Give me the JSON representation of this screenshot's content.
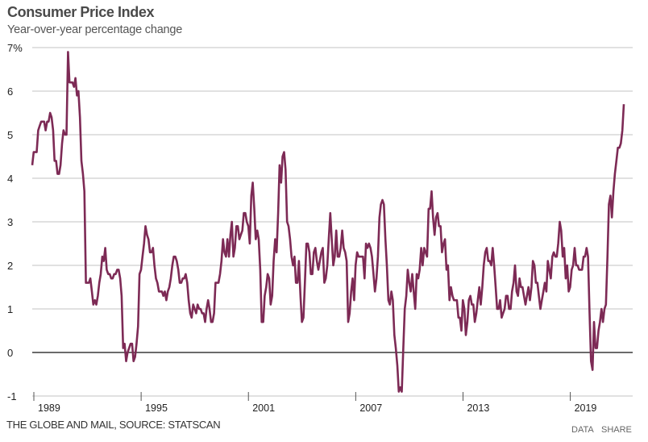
{
  "chart_data": {
    "type": "line",
    "title": "Consumer Price Index",
    "subtitle": "Year-over-year percentage change",
    "xlabel": "",
    "ylabel": "",
    "frequency": "monthly",
    "x_range": [
      "1989-01",
      "2022-02"
    ],
    "ylim": [
      -1,
      7
    ],
    "y_ticks": [
      -1,
      0,
      1,
      2,
      3,
      4,
      5,
      6,
      7
    ],
    "y_tick_labels": [
      "-1",
      "0",
      "1",
      "2",
      "3",
      "4",
      "5",
      "6",
      "7%"
    ],
    "x_ticks": [
      1989,
      1995,
      2001,
      2007,
      2013,
      2019
    ],
    "x_tick_labels": [
      "1989",
      "1995",
      "2001",
      "2007",
      "2013",
      "2019"
    ],
    "grid": true,
    "zero_line": true,
    "line_color": "#7d2a55",
    "series": [
      {
        "values_by_year": {
          "1989": [
            4.3,
            4.6,
            4.6,
            4.6,
            5.1,
            5.2,
            5.3,
            5.3,
            5.3,
            5.1,
            5.3,
            5.3
          ],
          "1990": [
            5.5,
            5.4,
            5.1,
            4.4,
            4.4,
            4.1,
            4.1,
            4.3,
            4.8,
            5.1,
            5.0,
            5.0
          ],
          "1991": [
            6.9,
            6.2,
            6.2,
            6.2,
            6.1,
            6.3,
            5.9,
            6.0,
            5.4,
            4.4,
            4.1,
            3.7
          ],
          "1992": [
            1.6,
            1.6,
            1.6,
            1.7,
            1.4,
            1.1,
            1.2,
            1.1,
            1.3,
            1.6,
            1.8,
            2.2
          ],
          "1993": [
            2.1,
            2.4,
            1.9,
            1.8,
            1.8,
            1.7,
            1.7,
            1.8,
            1.8,
            1.9,
            1.9,
            1.7
          ],
          "1994": [
            1.3,
            0.1,
            0.2,
            -0.2,
            0.0,
            0.1,
            0.2,
            0.2,
            -0.2,
            -0.1,
            0.2,
            0.6
          ],
          "1995": [
            1.8,
            1.9,
            2.2,
            2.5,
            2.9,
            2.7,
            2.6,
            2.3,
            2.3,
            2.4,
            2.0,
            1.7
          ],
          "1996": [
            1.6,
            1.4,
            1.4,
            1.4,
            1.3,
            1.4,
            1.2,
            1.4,
            1.5,
            1.7,
            2.0,
            2.2
          ],
          "1997": [
            2.2,
            2.1,
            1.9,
            1.6,
            1.6,
            1.7,
            1.7,
            1.8,
            1.6,
            1.2,
            0.9,
            0.8
          ],
          "1998": [
            1.1,
            1.0,
            0.9,
            1.1,
            1.0,
            1.0,
            0.9,
            0.9,
            0.7,
            1.0,
            1.2,
            1.0
          ],
          "1999": [
            0.7,
            0.7,
            0.9,
            1.6,
            1.6,
            1.6,
            1.8,
            2.1,
            2.6,
            2.3,
            2.2,
            2.6
          ],
          "2000": [
            2.2,
            2.7,
            3.0,
            2.2,
            2.4,
            2.9,
            2.9,
            2.6,
            2.7,
            2.8,
            3.2,
            3.2
          ],
          "2001": [
            3.0,
            2.9,
            2.5,
            3.6,
            3.9,
            3.3,
            2.6,
            2.8,
            2.6,
            1.9,
            0.7,
            0.7
          ],
          "2002": [
            1.3,
            1.5,
            1.8,
            1.7,
            1.1,
            1.3,
            2.1,
            2.6,
            2.3,
            3.2,
            4.3,
            3.9
          ],
          "2003": [
            4.5,
            4.6,
            4.2,
            3.0,
            2.9,
            2.6,
            2.2,
            2.0,
            2.2,
            1.6,
            1.6,
            2.1
          ],
          "2004": [
            1.3,
            0.7,
            0.8,
            1.6,
            2.5,
            2.5,
            2.3,
            1.8,
            1.8,
            2.3,
            2.4,
            2.1
          ],
          "2005": [
            1.9,
            2.1,
            2.3,
            2.4,
            1.6,
            1.7,
            2.0,
            2.6,
            3.2,
            2.6,
            2.0,
            2.2
          ],
          "2006": [
            2.8,
            2.2,
            2.2,
            2.4,
            2.8,
            2.4,
            2.3,
            2.1,
            0.7,
            0.9,
            1.4,
            1.7
          ],
          "2007": [
            1.2,
            2.0,
            2.3,
            2.2,
            2.2,
            2.2,
            2.2,
            1.7,
            2.5,
            2.4,
            2.5,
            2.4
          ],
          "2008": [
            2.2,
            1.8,
            1.4,
            1.7,
            2.2,
            3.1,
            3.4,
            3.5,
            3.4,
            2.6,
            2.0,
            1.2
          ],
          "2009": [
            1.1,
            1.4,
            1.2,
            0.4,
            0.1,
            -0.3,
            -0.9,
            -0.8,
            -0.9,
            0.1,
            1.0,
            1.3
          ],
          "2010": [
            1.9,
            1.6,
            1.4,
            1.8,
            1.4,
            1.0,
            1.8,
            1.7,
            1.9,
            2.4,
            2.0,
            2.4
          ],
          "2011": [
            2.3,
            2.2,
            3.3,
            3.3,
            3.7,
            3.1,
            2.7,
            3.1,
            3.2,
            2.9,
            2.9,
            2.3
          ],
          "2012": [
            2.5,
            2.6,
            1.9,
            2.0,
            1.2,
            1.5,
            1.3,
            1.2,
            1.2,
            1.2,
            0.8,
            0.8
          ],
          "2013": [
            0.5,
            1.2,
            1.0,
            0.4,
            0.7,
            1.2,
            1.3,
            1.1,
            1.1,
            0.7,
            0.9,
            1.2
          ],
          "2014": [
            1.5,
            1.1,
            1.5,
            2.0,
            2.3,
            2.4,
            2.1,
            2.1,
            2.0,
            2.4,
            2.0,
            1.5
          ],
          "2015": [
            1.0,
            1.0,
            1.2,
            0.8,
            0.9,
            1.0,
            1.3,
            1.3,
            1.0,
            1.0,
            1.4,
            1.6
          ],
          "2016": [
            2.0,
            1.4,
            1.3,
            1.7,
            1.5,
            1.5,
            1.3,
            1.1,
            1.3,
            1.5,
            1.2,
            1.5
          ],
          "2017": [
            2.1,
            2.0,
            1.6,
            1.6,
            1.3,
            1.0,
            1.2,
            1.4,
            1.6,
            1.4,
            2.1,
            1.9
          ],
          "2018": [
            1.7,
            2.2,
            2.3,
            2.2,
            2.2,
            2.5,
            3.0,
            2.8,
            2.2,
            2.4,
            1.7,
            2.0
          ],
          "2019": [
            1.4,
            1.5,
            1.9,
            2.0,
            2.4,
            2.0,
            2.0,
            1.9,
            1.9,
            1.9,
            2.2,
            2.2
          ],
          "2020": [
            2.4,
            2.2,
            0.9,
            -0.2,
            -0.4,
            0.7,
            0.1,
            0.1,
            0.5,
            0.7,
            1.0,
            0.7
          ],
          "2021": [
            1.0,
            1.1,
            2.2,
            3.4,
            3.6,
            3.1,
            3.7,
            4.1,
            4.4,
            4.7,
            4.7,
            4.8
          ],
          "2022": [
            5.1,
            5.7
          ]
        }
      }
    ]
  },
  "footer": {
    "source": "THE GLOBE AND MAIL, SOURCE: STATSCAN",
    "data_label": "DATA",
    "share_label": "SHARE"
  }
}
